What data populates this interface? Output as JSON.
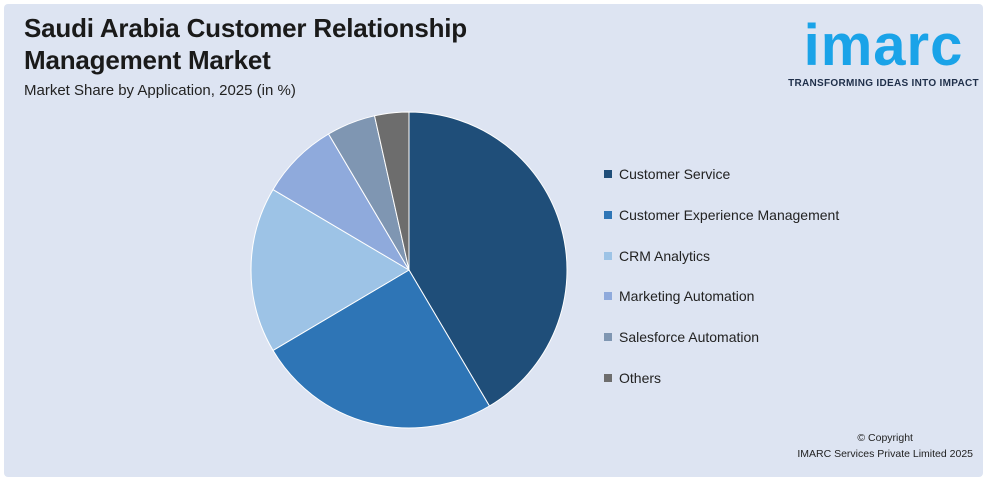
{
  "header": {
    "title": "Saudi Arabia Customer Relationship Management Market",
    "subtitle": "Market Share by Application, 2025 (in %)"
  },
  "logo": {
    "wordmark": "imarc",
    "tagline": "TRANSFORMING IDEAS INTO IMPACT",
    "color": "#1aa3e8"
  },
  "chart_data": {
    "type": "pie",
    "title": "Saudi Arabia Customer Relationship Management Market",
    "subtitle": "Market Share by Application, 2025 (in %)",
    "legend_position": "right",
    "categories": [
      "Customer Service",
      "Customer Experience Management",
      "CRM Analytics",
      "Marketing Automation",
      "Salesforce Automation",
      "Others"
    ],
    "values": [
      41.5,
      25.0,
      17.0,
      8.0,
      5.0,
      3.5
    ],
    "colors": [
      "#1f4e79",
      "#2e75b6",
      "#9dc3e6",
      "#8faadc",
      "#7f96b2",
      "#6d6d6d"
    ]
  },
  "footer": {
    "copyright_line1": "© Copyright",
    "copyright_line2": "IMARC Services Private Limited 2025"
  }
}
